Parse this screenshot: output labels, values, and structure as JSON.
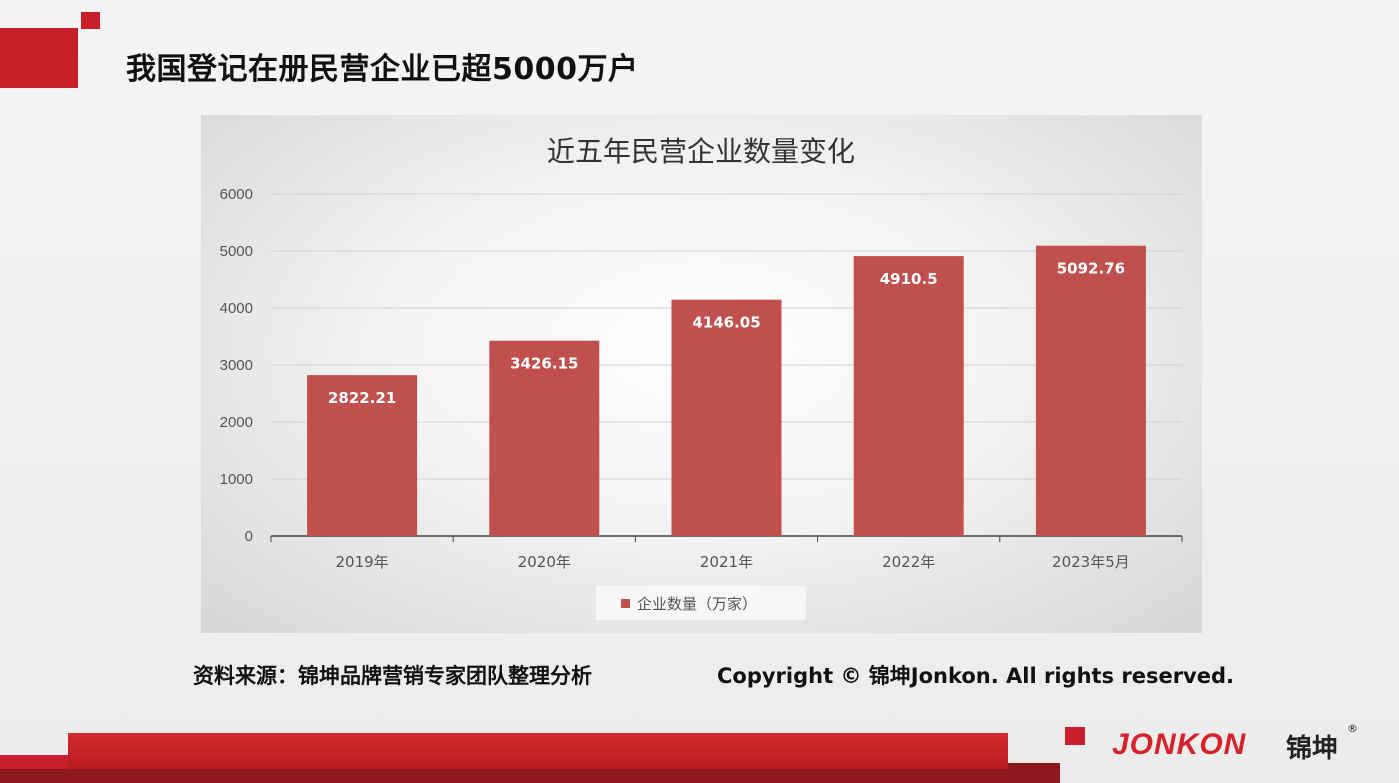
{
  "slide": {
    "title": "我国登记在册民营企业已超5000万户",
    "source": "资料来源：锦坤品牌营销专家团队整理分析",
    "copyright": "Copyright © 锦坤Jonkon. All rights reserved.",
    "logo_text": "JONKON",
    "logo_cn": "锦坤",
    "logo_reg": "®"
  },
  "colors": {
    "accent": "#c8202a",
    "bar": "#c0504d",
    "gridline": "#d0d0d0"
  },
  "chart_data": {
    "type": "bar",
    "title": "近五年民营企业数量变化",
    "categories": [
      "2019年",
      "2020年",
      "2021年",
      "2022年",
      "2023年5月"
    ],
    "series": [
      {
        "name": "企业数量（万家）",
        "values": [
          2822.21,
          3426.15,
          4146.05,
          4910.5,
          5092.76
        ]
      }
    ],
    "data_labels": [
      "2822.21",
      "3426.15",
      "4146.05",
      "4910.5",
      "5092.76"
    ],
    "ylim": [
      0,
      6000
    ],
    "yticks": [
      0,
      1000,
      2000,
      3000,
      4000,
      5000,
      6000
    ],
    "grid": true,
    "legend": "bottom"
  }
}
